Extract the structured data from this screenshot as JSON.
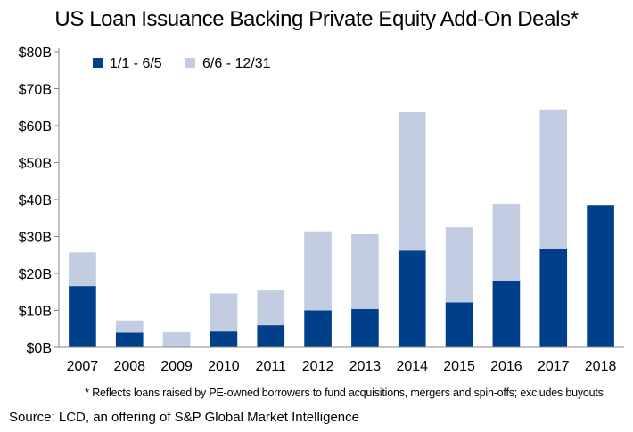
{
  "chart_data": {
    "type": "bar",
    "stacked": true,
    "title": "US Loan Issuance Backing Private Equity Add-On Deals*",
    "categories": [
      "2007",
      "2008",
      "2009",
      "2010",
      "2011",
      "2012",
      "2013",
      "2014",
      "2015",
      "2016",
      "2017",
      "2018"
    ],
    "series": [
      {
        "name": "1/1 - 6/5",
        "color": "#003f8a",
        "values": [
          16.6,
          4.0,
          0.0,
          4.3,
          6.0,
          10.0,
          10.4,
          26.2,
          12.2,
          18.0,
          26.7,
          38.5
        ]
      },
      {
        "name": "6/6 - 12/31",
        "color": "#c3cde1",
        "values": [
          9.1,
          3.3,
          4.1,
          10.3,
          9.4,
          21.4,
          20.2,
          37.4,
          20.3,
          20.8,
          37.7,
          0.0
        ]
      }
    ],
    "ylim": [
      0,
      80
    ],
    "yticks": [
      0,
      10,
      20,
      30,
      40,
      50,
      60,
      70,
      80
    ],
    "ytick_labels": [
      "$0B",
      "$10B",
      "$20B",
      "$30B",
      "$40B",
      "$50B",
      "$60B",
      "$70B",
      "$80B"
    ],
    "grid": false,
    "legend_position": "top-left",
    "footnote": "* Reflects loans raised by PE-owned borrowers to fund acquisitions, mergers and spin-offs; excludes buyouts",
    "source": "Source: LCD, an offering of S&P Global Market Intelligence"
  }
}
